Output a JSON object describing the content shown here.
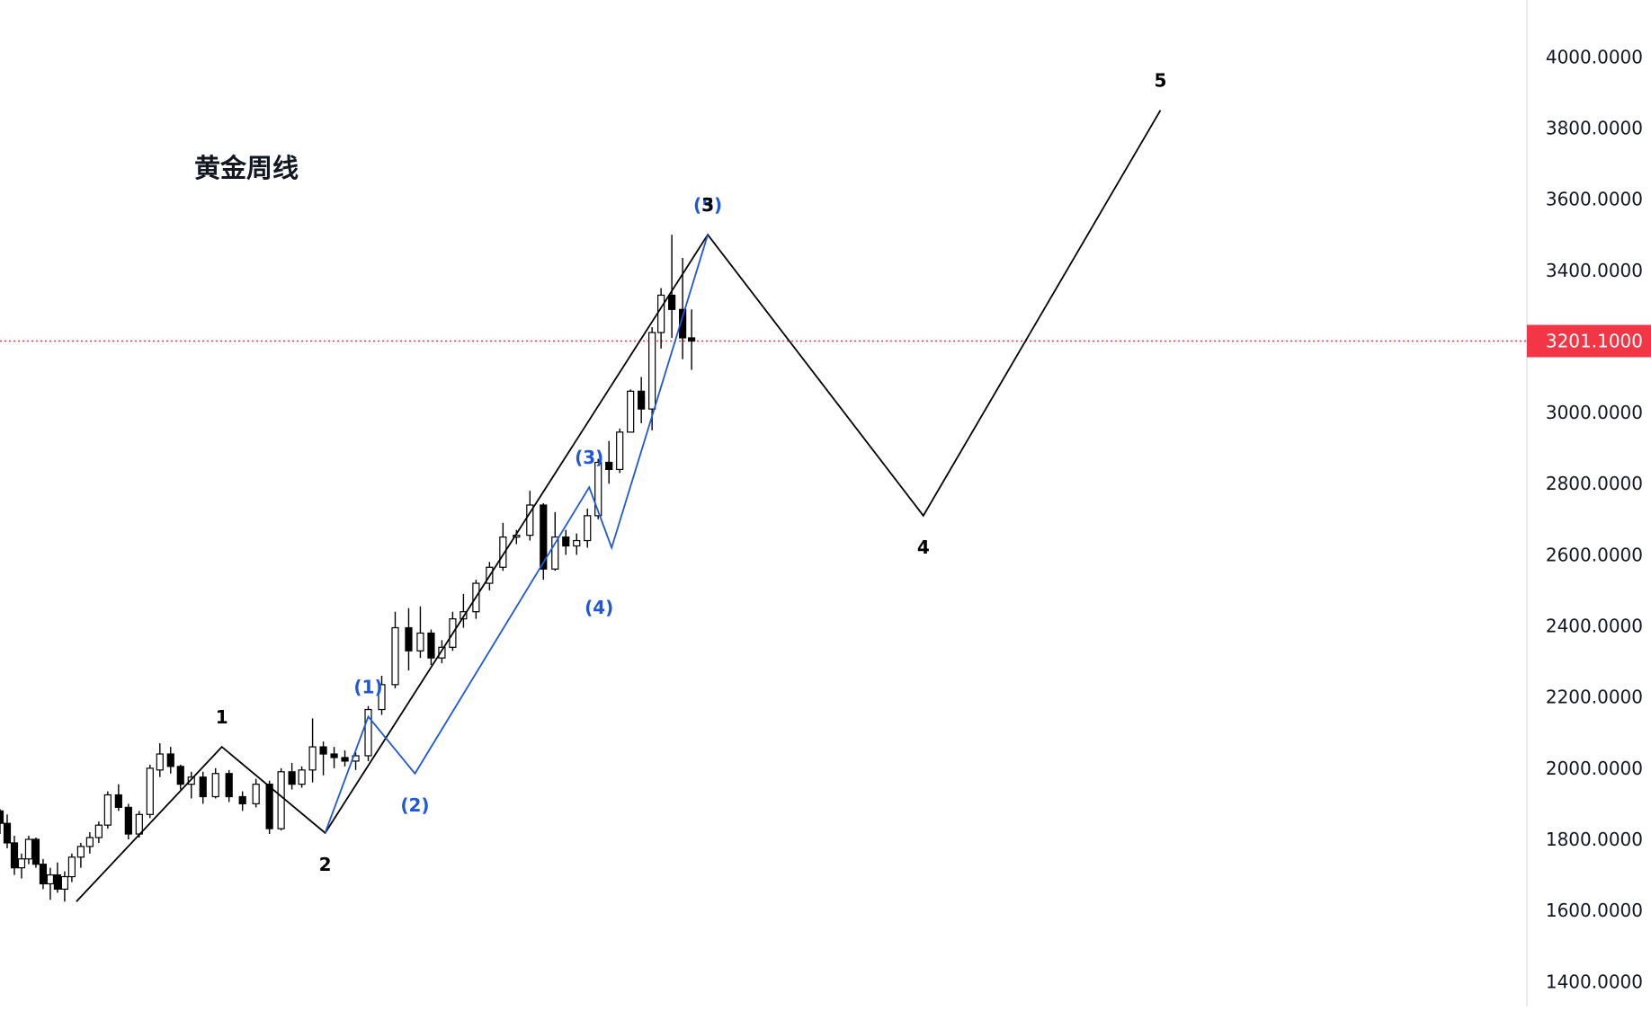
{
  "chart_data": {
    "type": "candlestick",
    "title": "黄金周线",
    "xlabel": "",
    "ylabel": "",
    "ylim": [
      1330,
      4160
    ],
    "y_ticks": [
      "4000.0000",
      "3800.0000",
      "3600.0000",
      "3400.0000",
      "3000.0000",
      "2800.0000",
      "2600.0000",
      "2400.0000",
      "2200.0000",
      "2000.0000",
      "1800.0000",
      "1600.0000",
      "1400.0000"
    ],
    "last_price": {
      "value": 3201.1,
      "label": "3201.1000",
      "color": "#f23645"
    },
    "x_range": [
      0,
      1700
    ],
    "grid": false,
    "colors": {
      "candle": "#000000",
      "major_wave": "#000000",
      "minor_wave": "#1f57d6",
      "price_line": "#f23645",
      "axis_text": "#131722"
    },
    "candles_start_index": 0,
    "candles": [
      [
        1880,
        1885,
        1815,
        1845
      ],
      [
        1845,
        1870,
        1775,
        1790
      ],
      [
        1790,
        1810,
        1700,
        1720
      ],
      [
        1720,
        1760,
        1690,
        1745
      ],
      [
        1745,
        1810,
        1730,
        1800
      ],
      [
        1800,
        1805,
        1720,
        1730
      ],
      [
        1730,
        1745,
        1660,
        1675
      ],
      [
        1675,
        1720,
        1630,
        1700
      ],
      [
        1700,
        1735,
        1650,
        1660
      ],
      [
        1660,
        1710,
        1625,
        1695
      ],
      [
        1695,
        1760,
        1680,
        1750
      ],
      [
        1750,
        1790,
        1720,
        1780
      ],
      [
        1780,
        1820,
        1760,
        1805
      ],
      [
        1805,
        1850,
        1790,
        1840
      ],
      [
        1840,
        1935,
        1830,
        1925
      ],
      [
        1925,
        1955,
        1880,
        1890
      ],
      [
        1890,
        1900,
        1800,
        1815
      ],
      [
        1815,
        1880,
        1805,
        1870
      ],
      [
        1870,
        2010,
        1860,
        2000
      ],
      [
        1995,
        2070,
        1975,
        2040
      ],
      [
        2040,
        2060,
        1985,
        2005
      ],
      [
        2005,
        2010,
        1940,
        1955
      ],
      [
        1955,
        1990,
        1915,
        1975
      ],
      [
        1975,
        1990,
        1900,
        1920
      ],
      [
        1920,
        2000,
        1915,
        1985
      ],
      [
        1985,
        1995,
        1905,
        1920
      ],
      [
        1920,
        1935,
        1880,
        1900
      ],
      [
        1900,
        1970,
        1890,
        1955
      ],
      [
        1955,
        1965,
        1815,
        1830
      ],
      [
        1830,
        2000,
        1825,
        1990
      ],
      [
        1990,
        2015,
        1940,
        1955
      ],
      [
        1955,
        2005,
        1945,
        1995
      ],
      [
        1995,
        2140,
        1960,
        2060
      ],
      [
        2060,
        2075,
        1980,
        2040
      ],
      [
        2040,
        2060,
        2000,
        2030
      ],
      [
        2030,
        2050,
        2005,
        2020
      ],
      [
        2020,
        2045,
        1995,
        2035
      ],
      [
        2035,
        2175,
        2020,
        2165
      ],
      [
        2165,
        2260,
        2150,
        2235
      ],
      [
        2235,
        2440,
        2225,
        2395
      ],
      [
        2395,
        2450,
        2275,
        2330
      ],
      [
        2330,
        2455,
        2310,
        2380
      ],
      [
        2380,
        2390,
        2290,
        2310
      ],
      [
        2310,
        2360,
        2295,
        2340
      ],
      [
        2340,
        2440,
        2330,
        2420
      ],
      [
        2420,
        2490,
        2395,
        2440
      ],
      [
        2440,
        2530,
        2420,
        2520
      ],
      [
        2520,
        2580,
        2500,
        2565
      ],
      [
        2565,
        2690,
        2555,
        2650
      ],
      [
        2650,
        2670,
        2630,
        2655
      ],
      [
        2655,
        2780,
        2640,
        2740
      ],
      [
        2740,
        2745,
        2530,
        2560
      ],
      [
        2560,
        2720,
        2555,
        2650
      ],
      [
        2650,
        2670,
        2600,
        2625
      ],
      [
        2625,
        2660,
        2600,
        2640
      ],
      [
        2640,
        2730,
        2620,
        2710
      ],
      [
        2710,
        2870,
        2700,
        2860
      ],
      [
        2860,
        2920,
        2800,
        2840
      ],
      [
        2840,
        2955,
        2830,
        2945
      ],
      [
        2945,
        3065,
        2960,
        3060
      ],
      [
        3060,
        3100,
        2970,
        3010
      ],
      [
        3010,
        3240,
        2950,
        3225
      ],
      [
        3225,
        3350,
        3180,
        3330
      ],
      [
        3330,
        3500,
        3210,
        3290
      ],
      [
        3290,
        3435,
        3150,
        3210
      ],
      [
        3210,
        3290,
        3120,
        3201.1
      ]
    ],
    "candle_x": [
      0,
      8,
      16,
      24,
      32,
      40,
      48,
      56,
      64,
      72,
      80,
      90,
      100,
      110,
      120,
      132,
      143,
      155,
      167,
      178,
      190,
      201,
      213,
      226,
      240,
      255,
      270,
      285,
      300,
      313,
      325,
      336,
      348,
      360,
      372,
      384,
      396,
      410,
      425,
      440,
      455,
      468,
      480,
      492,
      504,
      516,
      530,
      545,
      560,
      575,
      590,
      605,
      618,
      630,
      642,
      654,
      666,
      678,
      690,
      702,
      714,
      726,
      736,
      748,
      760,
      770
    ],
    "major_wave_points": [
      [
        85,
        1625
      ],
      [
        247,
        2060
      ],
      [
        362,
        1818
      ],
      [
        788,
        3500
      ],
      [
        1028,
        2710
      ],
      [
        1292,
        3850
      ]
    ],
    "major_wave_labels": [
      {
        "text": "1",
        "x": 247,
        "y": 2060,
        "pos": "above"
      },
      {
        "text": "2",
        "x": 362,
        "y": 1818,
        "pos": "below"
      },
      {
        "text": "3",
        "x": 788,
        "y": 3500,
        "pos": "above"
      },
      {
        "text": "4",
        "x": 1028,
        "y": 2710,
        "pos": "below"
      },
      {
        "text": "5",
        "x": 1292,
        "y": 3850,
        "pos": "above"
      }
    ],
    "minor_wave_points": [
      [
        362,
        1818
      ],
      [
        410,
        2145
      ],
      [
        462,
        1985
      ],
      [
        656,
        2790
      ],
      [
        681,
        2620
      ],
      [
        788,
        3500
      ]
    ],
    "minor_wave_labels": [
      {
        "text": "(1)",
        "x": 410,
        "y": 2145,
        "pos": "above"
      },
      {
        "text": "(2)",
        "x": 462,
        "y": 1985,
        "pos": "below"
      },
      {
        "text": "(3)",
        "x": 656,
        "y": 2790,
        "pos": "above"
      },
      {
        "text": "(4)",
        "x": 667,
        "y": 2540,
        "pos": "below"
      },
      {
        "text": "(5)",
        "x": 788,
        "y": 3500,
        "pos": "above"
      }
    ]
  }
}
